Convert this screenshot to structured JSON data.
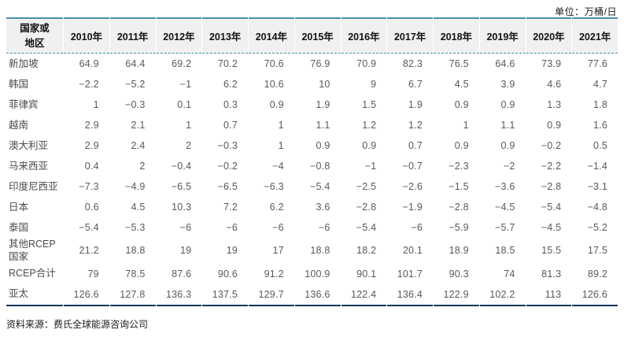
{
  "page": {
    "unit_label": "单位：万桶/日",
    "source_note": "资料来源：费氏全球能源咨询公司"
  },
  "colors": {
    "accent_teal": "#4a8fae",
    "header_background": "#eff1f0",
    "bottom_rule_navy": "#16365c",
    "data_text_gray": "#595959"
  },
  "chart_data": {
    "type": "table",
    "unit": "万桶/日",
    "corner_header": "国家或\n地区",
    "columns": [
      "2010年",
      "2011年",
      "2012年",
      "2013年",
      "2014年",
      "2015年",
      "2016年",
      "2017年",
      "2018年",
      "2019年",
      "2020年",
      "2021年"
    ],
    "rows": [
      {
        "label": "新加坡",
        "values": [
          64.9,
          64.4,
          69.2,
          70.2,
          70.6,
          76.9,
          70.9,
          82.3,
          76.5,
          64.6,
          73.9,
          77.6
        ]
      },
      {
        "label": "韩国",
        "values": [
          -2.2,
          -5.2,
          -1,
          6.2,
          10.6,
          10,
          9,
          6.7,
          4.5,
          3.9,
          4.6,
          4.7
        ]
      },
      {
        "label": "菲律宾",
        "values": [
          1,
          -0.3,
          0.1,
          0.3,
          0.9,
          1.9,
          1.5,
          1.9,
          0.9,
          0.9,
          1.3,
          1.8
        ]
      },
      {
        "label": "越南",
        "values": [
          2.9,
          2.1,
          1,
          0.7,
          1,
          1.1,
          1.2,
          1.2,
          1,
          1.1,
          0.9,
          1.6
        ]
      },
      {
        "label": "澳大利亚",
        "values": [
          2.9,
          2.4,
          2,
          -0.3,
          1,
          0.9,
          0.9,
          0.7,
          0.9,
          0.9,
          -0.2,
          0.5
        ]
      },
      {
        "label": "马来西亚",
        "values": [
          0.4,
          2,
          -0.4,
          -0.2,
          -4,
          -0.8,
          -1,
          -0.7,
          -2.3,
          -2,
          -2.2,
          -1.4
        ]
      },
      {
        "label": "印度尼西亚",
        "values": [
          -7.3,
          -4.9,
          -6.5,
          -6.5,
          -6.3,
          -5.4,
          -2.5,
          -2.6,
          -1.5,
          -3.6,
          -2.8,
          -3.1
        ]
      },
      {
        "label": "日本",
        "values": [
          0.6,
          4.5,
          10.3,
          7.2,
          6.2,
          3.6,
          -2.8,
          -1.9,
          -2.8,
          -4.5,
          -5.4,
          -4.8
        ]
      },
      {
        "label": "泰国",
        "values": [
          -5.4,
          -5.3,
          -6,
          -6,
          -6,
          -6,
          -5.4,
          -6,
          -5.9,
          -5.7,
          -4.5,
          -5.2
        ]
      },
      {
        "label": "其他RCEP国家",
        "values": [
          21.2,
          18.8,
          19,
          19,
          17,
          18.8,
          18.2,
          20.1,
          18.9,
          18.5,
          15.5,
          17.5
        ]
      },
      {
        "label": "RCEP合计",
        "values": [
          79,
          78.5,
          87.6,
          90.6,
          91.2,
          100.9,
          90.1,
          101.7,
          90.3,
          74,
          81.3,
          89.2
        ]
      },
      {
        "label": "亚太",
        "values": [
          126.6,
          127.8,
          136.3,
          137.5,
          129.7,
          136.6,
          122.4,
          136.4,
          122.9,
          102.2,
          113,
          126.6
        ]
      }
    ]
  }
}
